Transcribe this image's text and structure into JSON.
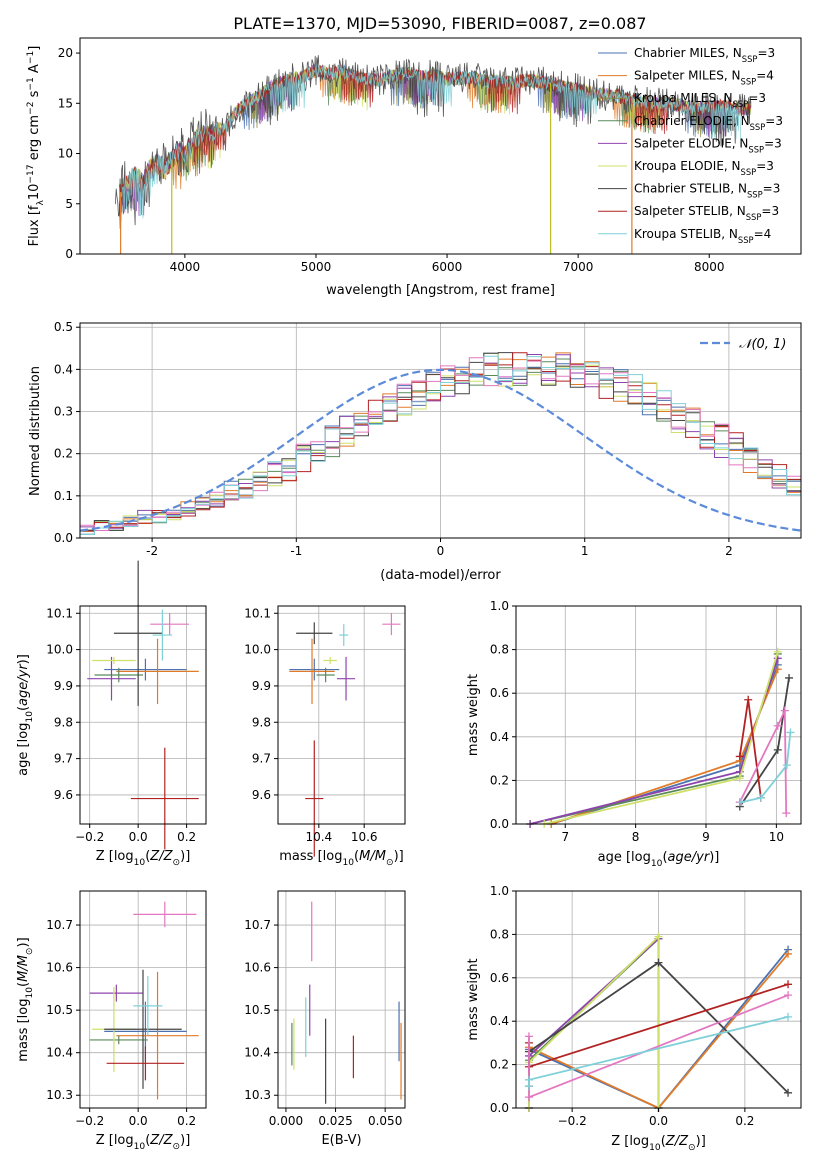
{
  "figure": {
    "title": "PLATE=1370, MJD=53090, FIBERID=0087, z=0.087"
  },
  "chart_data": [
    {
      "id": "spectrum",
      "type": "line",
      "xlabel": "wavelength [Angstrom, rest frame]",
      "ylabel": "Flux [fλ10⁻¹⁷ erg cm⁻² s⁻¹ A⁻¹]",
      "xlim": [
        3200,
        8700
      ],
      "ylim": [
        0,
        21.5
      ],
      "xticks": [
        4000,
        5000,
        6000,
        7000,
        8000
      ],
      "yticks": [
        0,
        5,
        10,
        15,
        20
      ],
      "grid": false,
      "legend_position": "top-right",
      "continuum": {
        "x": [
          3500,
          3560,
          3620,
          3680,
          3720,
          3760,
          3800,
          3850,
          3900,
          3950,
          4000,
          4050,
          4100,
          4150,
          4200,
          4250,
          4300,
          4350,
          4400,
          4500,
          4600,
          4700,
          4800,
          4900,
          5000,
          5100,
          5200,
          5300,
          5400,
          5500,
          5600,
          5700,
          5800,
          5900,
          6000,
          6100,
          6200,
          6300,
          6400,
          6500,
          6600,
          6700,
          6800,
          6900,
          7000,
          7100,
          7200,
          7300,
          7400,
          7500,
          7600,
          7700,
          7800,
          7900,
          8000,
          8100,
          8200,
          8300
        ],
        "y": [
          6.0,
          7.0,
          7.8,
          7.0,
          8.3,
          8.6,
          9.0,
          8.4,
          9.4,
          10.2,
          9.8,
          11.0,
          11.4,
          12.0,
          11.7,
          12.5,
          12.4,
          13.3,
          14.3,
          15.2,
          16.1,
          16.9,
          17.4,
          17.6,
          18.3,
          17.9,
          18.2,
          17.6,
          17.4,
          17.3,
          17.8,
          18.0,
          17.6,
          17.8,
          17.4,
          17.5,
          17.6,
          17.2,
          17.2,
          17.0,
          17.3,
          17.1,
          17.0,
          16.6,
          16.4,
          16.0,
          15.8,
          15.8,
          15.4,
          15.2,
          15.0,
          15.0,
          14.7,
          14.5,
          14.6,
          14.8,
          14.5,
          14.5
        ]
      },
      "spikes": [
        {
          "x": 3510,
          "y": 0,
          "color": "#e07b2a"
        },
        {
          "x": 3900,
          "y": 0,
          "color": "#bcbd22"
        },
        {
          "x": 6790,
          "y": 0,
          "color": "#bcbd22"
        },
        {
          "x": 7410,
          "y": 0,
          "color": "#e07b2a"
        }
      ]
    },
    {
      "id": "residual-histogram",
      "type": "histogram",
      "xlabel": "(data-model)/error",
      "ylabel": "Normed distribution",
      "xlim": [
        -2.5,
        2.5
      ],
      "ylim": [
        0,
        0.51
      ],
      "xticks": [
        -2,
        -1,
        0,
        1,
        2
      ],
      "yticks": [
        0.0,
        0.1,
        0.2,
        0.3,
        0.4,
        0.5
      ],
      "grid": true,
      "legend_position": "top-right",
      "gaussian": {
        "label": "𝒩(0, 1)",
        "mu": 0,
        "sigma": 1,
        "color": "#5b8bd9"
      },
      "bin_edges_start": -2.5,
      "bin_width": 0.1,
      "base_counts": [
        0.02,
        0.03,
        0.03,
        0.04,
        0.05,
        0.05,
        0.06,
        0.07,
        0.08,
        0.09,
        0.11,
        0.12,
        0.14,
        0.15,
        0.17,
        0.19,
        0.21,
        0.23,
        0.25,
        0.27,
        0.29,
        0.31,
        0.33,
        0.34,
        0.36,
        0.37,
        0.38,
        0.39,
        0.4,
        0.4,
        0.4,
        0.4,
        0.4,
        0.4,
        0.39,
        0.38,
        0.37,
        0.36,
        0.35,
        0.33,
        0.31,
        0.29,
        0.27,
        0.25,
        0.23,
        0.21,
        0.19,
        0.17,
        0.15,
        0.13,
        0.12,
        0.1,
        0.09,
        0.08,
        0.07,
        0.06,
        0.05,
        0.04,
        0.035,
        0.03
      ]
    },
    {
      "id": "age-vs-Z",
      "type": "scatter",
      "xlabel": "Z [log₁₀(Z/Z⊙)]",
      "ylabel": "age  [log₁₀(age/yr)]",
      "xlim": [
        -0.24,
        0.28
      ],
      "ylim": [
        9.52,
        10.12
      ],
      "xticks": [
        -0.2,
        0.0,
        0.2
      ],
      "xticklabels": [
        "−0.2",
        "0.0",
        "0.2"
      ],
      "yticks": [
        9.6,
        9.7,
        9.8,
        9.9,
        10.0,
        10.1
      ],
      "grid": true,
      "points": [
        {
          "x": 0.03,
          "xerr": 0.17,
          "y": 9.945,
          "yerr": 0.03,
          "color": "#4c72b0"
        },
        {
          "x": 0.08,
          "xerr": 0.17,
          "y": 9.94,
          "yerr": 0.09,
          "color": "#e07b2a"
        },
        {
          "x": -0.08,
          "xerr": 0.1,
          "y": 9.93,
          "yerr": 0.02,
          "color": "#5a8a5a"
        },
        {
          "x": -0.11,
          "xerr": 0.1,
          "y": 9.92,
          "yerr": 0.06,
          "color": "#8e44ad"
        },
        {
          "x": -0.1,
          "xerr": 0.09,
          "y": 9.97,
          "yerr": 0.01,
          "color": "#cfe06a"
        },
        {
          "x": 0.0,
          "xerr": 0.1,
          "y": 10.045,
          "yerr": 0.2,
          "color": "#444444"
        },
        {
          "x": 0.11,
          "xerr": 0.14,
          "y": 9.59,
          "yerr": 0.14,
          "color": "#b22222"
        },
        {
          "x": 0.13,
          "xerr": 0.08,
          "y": 10.07,
          "yerr": 0.03,
          "color": "#e377c2"
        },
        {
          "x": 0.1,
          "xerr": 0.04,
          "y": 10.04,
          "yerr": 0.07,
          "color": "#7fd0d8"
        }
      ]
    },
    {
      "id": "age-vs-mass",
      "type": "scatter",
      "xlabel": "mass [log₁₀(M/M⊙)]",
      "xlim": [
        10.22,
        10.78
      ],
      "ylim": [
        9.52,
        10.12
      ],
      "xticks": [
        10.4,
        10.6
      ],
      "yticks": [
        9.6,
        9.7,
        9.8,
        9.9,
        10.0,
        10.1
      ],
      "grid": true,
      "points": [
        {
          "x": 10.38,
          "xerr": 0.11,
          "y": 9.945,
          "yerr": 0.03,
          "color": "#4c72b0"
        },
        {
          "x": 10.37,
          "xerr": 0.1,
          "y": 9.94,
          "yerr": 0.09,
          "color": "#e07b2a"
        },
        {
          "x": 10.43,
          "xerr": 0.04,
          "y": 9.93,
          "yerr": 0.02,
          "color": "#5a8a5a"
        },
        {
          "x": 10.52,
          "xerr": 0.04,
          "y": 9.92,
          "yerr": 0.06,
          "color": "#8e44ad"
        },
        {
          "x": 10.45,
          "xerr": 0.03,
          "y": 9.97,
          "yerr": 0.01,
          "color": "#cfe06a"
        },
        {
          "x": 10.38,
          "xerr": 0.08,
          "y": 10.045,
          "yerr": 0.03,
          "color": "#444444"
        },
        {
          "x": 10.38,
          "xerr": 0.04,
          "y": 9.59,
          "yerr": 0.16,
          "color": "#b22222"
        },
        {
          "x": 10.72,
          "xerr": 0.04,
          "y": 10.07,
          "yerr": 0.03,
          "color": "#e377c2"
        },
        {
          "x": 10.51,
          "xerr": 0.02,
          "y": 10.04,
          "yerr": 0.03,
          "color": "#7fd0d8"
        }
      ]
    },
    {
      "id": "mass-weight-vs-age",
      "type": "line",
      "xlabel": "age  [log₁₀(age/yr)]",
      "ylabel": "mass weight",
      "xlim": [
        6.3,
        10.35
      ],
      "ylim": [
        0,
        1
      ],
      "xticks": [
        7,
        8,
        9,
        10
      ],
      "yticks": [
        0.0,
        0.2,
        0.4,
        0.6,
        0.8,
        1.0
      ],
      "grid": true,
      "series": [
        {
          "color": "#4c72b0",
          "x": [
            6.8,
            9.48,
            10.02
          ],
          "y": [
            0.0,
            0.27,
            0.73
          ]
        },
        {
          "color": "#e07b2a",
          "x": [
            6.8,
            9.48,
            10.02
          ],
          "y": [
            0.0,
            0.29,
            0.71
          ]
        },
        {
          "color": "#5a8a5a",
          "x": [
            6.5,
            9.48,
            10.02
          ],
          "y": [
            0.0,
            0.22,
            0.78
          ]
        },
        {
          "color": "#8e44ad",
          "x": [
            6.5,
            9.48,
            10.02
          ],
          "y": [
            0.0,
            0.24,
            0.76
          ]
        },
        {
          "color": "#cfe06a",
          "x": [
            6.7,
            9.48,
            10.02
          ],
          "y": [
            0.0,
            0.21,
            0.79
          ]
        },
        {
          "color": "#444444",
          "x": [
            9.48,
            10.02,
            10.18
          ],
          "y": [
            0.08,
            0.34,
            0.67
          ]
        },
        {
          "color": "#b22222",
          "x": [
            9.48,
            9.6,
            9.78
          ],
          "y": [
            0.31,
            0.57,
            0.12
          ]
        },
        {
          "color": "#e377c2",
          "x": [
            9.48,
            10.02,
            10.12,
            10.14
          ],
          "y": [
            0.1,
            0.45,
            0.52,
            0.05
          ]
        },
        {
          "color": "#7fd0d8",
          "x": [
            9.5,
            9.78,
            10.15,
            10.2
          ],
          "y": [
            0.1,
            0.12,
            0.27,
            0.42
          ]
        }
      ]
    },
    {
      "id": "mass-vs-Z",
      "type": "scatter",
      "xlabel": "Z [log₁₀(Z/Z⊙)]",
      "ylabel": "mass [log₁₀(M/M⊙)]",
      "xlim": [
        -0.24,
        0.28
      ],
      "ylim": [
        10.27,
        10.78
      ],
      "xticks": [
        -0.2,
        0.0,
        0.2
      ],
      "xticklabels": [
        "−0.2",
        "0.0",
        "0.2"
      ],
      "yticks": [
        10.3,
        10.4,
        10.5,
        10.6,
        10.7
      ],
      "grid": true,
      "points": [
        {
          "x": 0.03,
          "xerr": 0.17,
          "y": 10.45,
          "yerr": 0.07,
          "color": "#4c72b0"
        },
        {
          "x": 0.08,
          "xerr": 0.17,
          "y": 10.44,
          "yerr": 0.15,
          "color": "#e07b2a"
        },
        {
          "x": -0.08,
          "xerr": 0.12,
          "y": 10.43,
          "yerr": 0.01,
          "color": "#5a8a5a"
        },
        {
          "x": -0.09,
          "xerr": 0.11,
          "y": 10.54,
          "yerr": 0.02,
          "color": "#8e44ad"
        },
        {
          "x": -0.1,
          "xerr": 0.09,
          "y": 10.455,
          "yerr": 0.1,
          "color": "#cfe06a"
        },
        {
          "x": 0.02,
          "xerr": 0.16,
          "y": 10.455,
          "yerr": 0.14,
          "color": "#444444"
        },
        {
          "x": 0.03,
          "xerr": 0.16,
          "y": 10.375,
          "yerr": 0.04,
          "color": "#b22222"
        },
        {
          "x": 0.11,
          "xerr": 0.13,
          "y": 10.725,
          "yerr": 0.03,
          "color": "#e377c2"
        },
        {
          "x": 0.04,
          "xerr": 0.06,
          "y": 10.51,
          "yerr": 0.07,
          "color": "#7fd0d8"
        }
      ]
    },
    {
      "id": "mass-vs-ebv",
      "type": "scatter",
      "xlabel": "E(B-V)",
      "xlim": [
        -0.004,
        0.06
      ],
      "ylim": [
        10.27,
        10.78
      ],
      "xticks": [
        0.0,
        0.025,
        0.05
      ],
      "xticklabels": [
        "0.000",
        "0.025",
        "0.050"
      ],
      "yticks": [
        10.3,
        10.4,
        10.5,
        10.6,
        10.7
      ],
      "grid": true,
      "points": [
        {
          "x": 0.057,
          "y": 10.45,
          "yerr": 0.07,
          "color": "#4c72b0"
        },
        {
          "x": 0.058,
          "y": 10.38,
          "yerr": 0.09,
          "color": "#e07b2a"
        },
        {
          "x": 0.003,
          "y": 10.42,
          "yerr": 0.05,
          "color": "#5a8a5a"
        },
        {
          "x": 0.012,
          "y": 10.5,
          "yerr": 0.06,
          "color": "#8e44ad"
        },
        {
          "x": 0.004,
          "y": 10.42,
          "yerr": 0.06,
          "color": "#cfe06a"
        },
        {
          "x": 0.02,
          "y": 10.38,
          "yerr": 0.1,
          "color": "#444444"
        },
        {
          "x": 0.034,
          "y": 10.39,
          "yerr": 0.05,
          "color": "#b22222"
        },
        {
          "x": 0.013,
          "y": 10.685,
          "yerr": 0.07,
          "color": "#e377c2"
        },
        {
          "x": 0.01,
          "y": 10.46,
          "yerr": 0.07,
          "color": "#7fd0d8"
        }
      ]
    },
    {
      "id": "mass-weight-vs-Z",
      "type": "line",
      "xlabel": "Z [log₁₀(Z/Z⊙)]",
      "ylabel": "mass weight",
      "xlim": [
        -0.33,
        0.33
      ],
      "ylim": [
        0,
        1
      ],
      "xticks": [
        -0.2,
        0.0,
        0.2
      ],
      "xticklabels": [
        "−0.2",
        "0.0",
        "0.2"
      ],
      "yticks": [
        0.0,
        0.2,
        0.4,
        0.6,
        0.8,
        1.0
      ],
      "grid": true,
      "series": [
        {
          "color": "#4c72b0",
          "x": [
            -0.3,
            -0.3,
            0.0,
            0.3
          ],
          "y": [
            0.0,
            0.27,
            0.0,
            0.73
          ]
        },
        {
          "color": "#e07b2a",
          "x": [
            -0.3,
            -0.3,
            0.0,
            0.3
          ],
          "y": [
            0.0,
            0.28,
            0.0,
            0.71
          ]
        },
        {
          "color": "#5a8a5a",
          "x": [
            -0.3,
            -0.3,
            0.0,
            0.0
          ],
          "y": [
            0.0,
            0.22,
            0.78,
            0.0
          ]
        },
        {
          "color": "#8e44ad",
          "x": [
            -0.3,
            -0.3,
            0.0,
            0.0
          ],
          "y": [
            0.0,
            0.24,
            0.78,
            0.0
          ]
        },
        {
          "color": "#cfe06a",
          "x": [
            -0.3,
            -0.3,
            0.0,
            0.0
          ],
          "y": [
            0.0,
            0.21,
            0.79,
            0.0
          ]
        },
        {
          "color": "#444444",
          "x": [
            -0.3,
            -0.3,
            0.0,
            0.3
          ],
          "y": [
            0.1,
            0.26,
            0.67,
            0.07
          ]
        },
        {
          "color": "#b22222",
          "x": [
            -0.3,
            -0.3,
            0.3
          ],
          "y": [
            0.3,
            0.19,
            0.57
          ]
        },
        {
          "color": "#e377c2",
          "x": [
            -0.3,
            -0.3,
            0.3
          ],
          "y": [
            0.33,
            0.05,
            0.52
          ]
        },
        {
          "color": "#7fd0d8",
          "x": [
            -0.3,
            -0.3,
            0.3
          ],
          "y": [
            0.1,
            0.13,
            0.42
          ]
        }
      ]
    }
  ],
  "legend_entries": [
    {
      "label": "Chabrier MILES, N",
      "sub": "SSP",
      "suffix": "=3",
      "color": "#4c72b0"
    },
    {
      "label": "Salpeter MILES, N",
      "sub": "SSP",
      "suffix": "=4",
      "color": "#e07b2a"
    },
    {
      "label": "Kroupa MILES, N",
      "sub": "SSP",
      "suffix": "=3",
      "color": "#8a8a3a"
    },
    {
      "label": "Chabrier ELODIE, N",
      "sub": "SSP",
      "suffix": "=3",
      "color": "#5a8a5a"
    },
    {
      "label": "Salpeter ELODIE, N",
      "sub": "SSP",
      "suffix": "=3",
      "color": "#8e44ad"
    },
    {
      "label": "Kroupa ELODIE, N",
      "sub": "SSP",
      "suffix": "=3",
      "color": "#cfe06a"
    },
    {
      "label": "Chabrier STELIB, N",
      "sub": "SSP",
      "suffix": "=3",
      "color": "#444444"
    },
    {
      "label": "Salpeter STELIB, N",
      "sub": "SSP",
      "suffix": "=3",
      "color": "#b22222"
    },
    {
      "label": "Kroupa STELIB, N",
      "sub": "SSP",
      "suffix": "=4",
      "color": "#7fd0d8"
    }
  ],
  "hist_colors": [
    "#4c72b0",
    "#e07b2a",
    "#5a8a5a",
    "#8e44ad",
    "#cfe06a",
    "#444444",
    "#b22222",
    "#e377c2",
    "#7fd0d8"
  ]
}
